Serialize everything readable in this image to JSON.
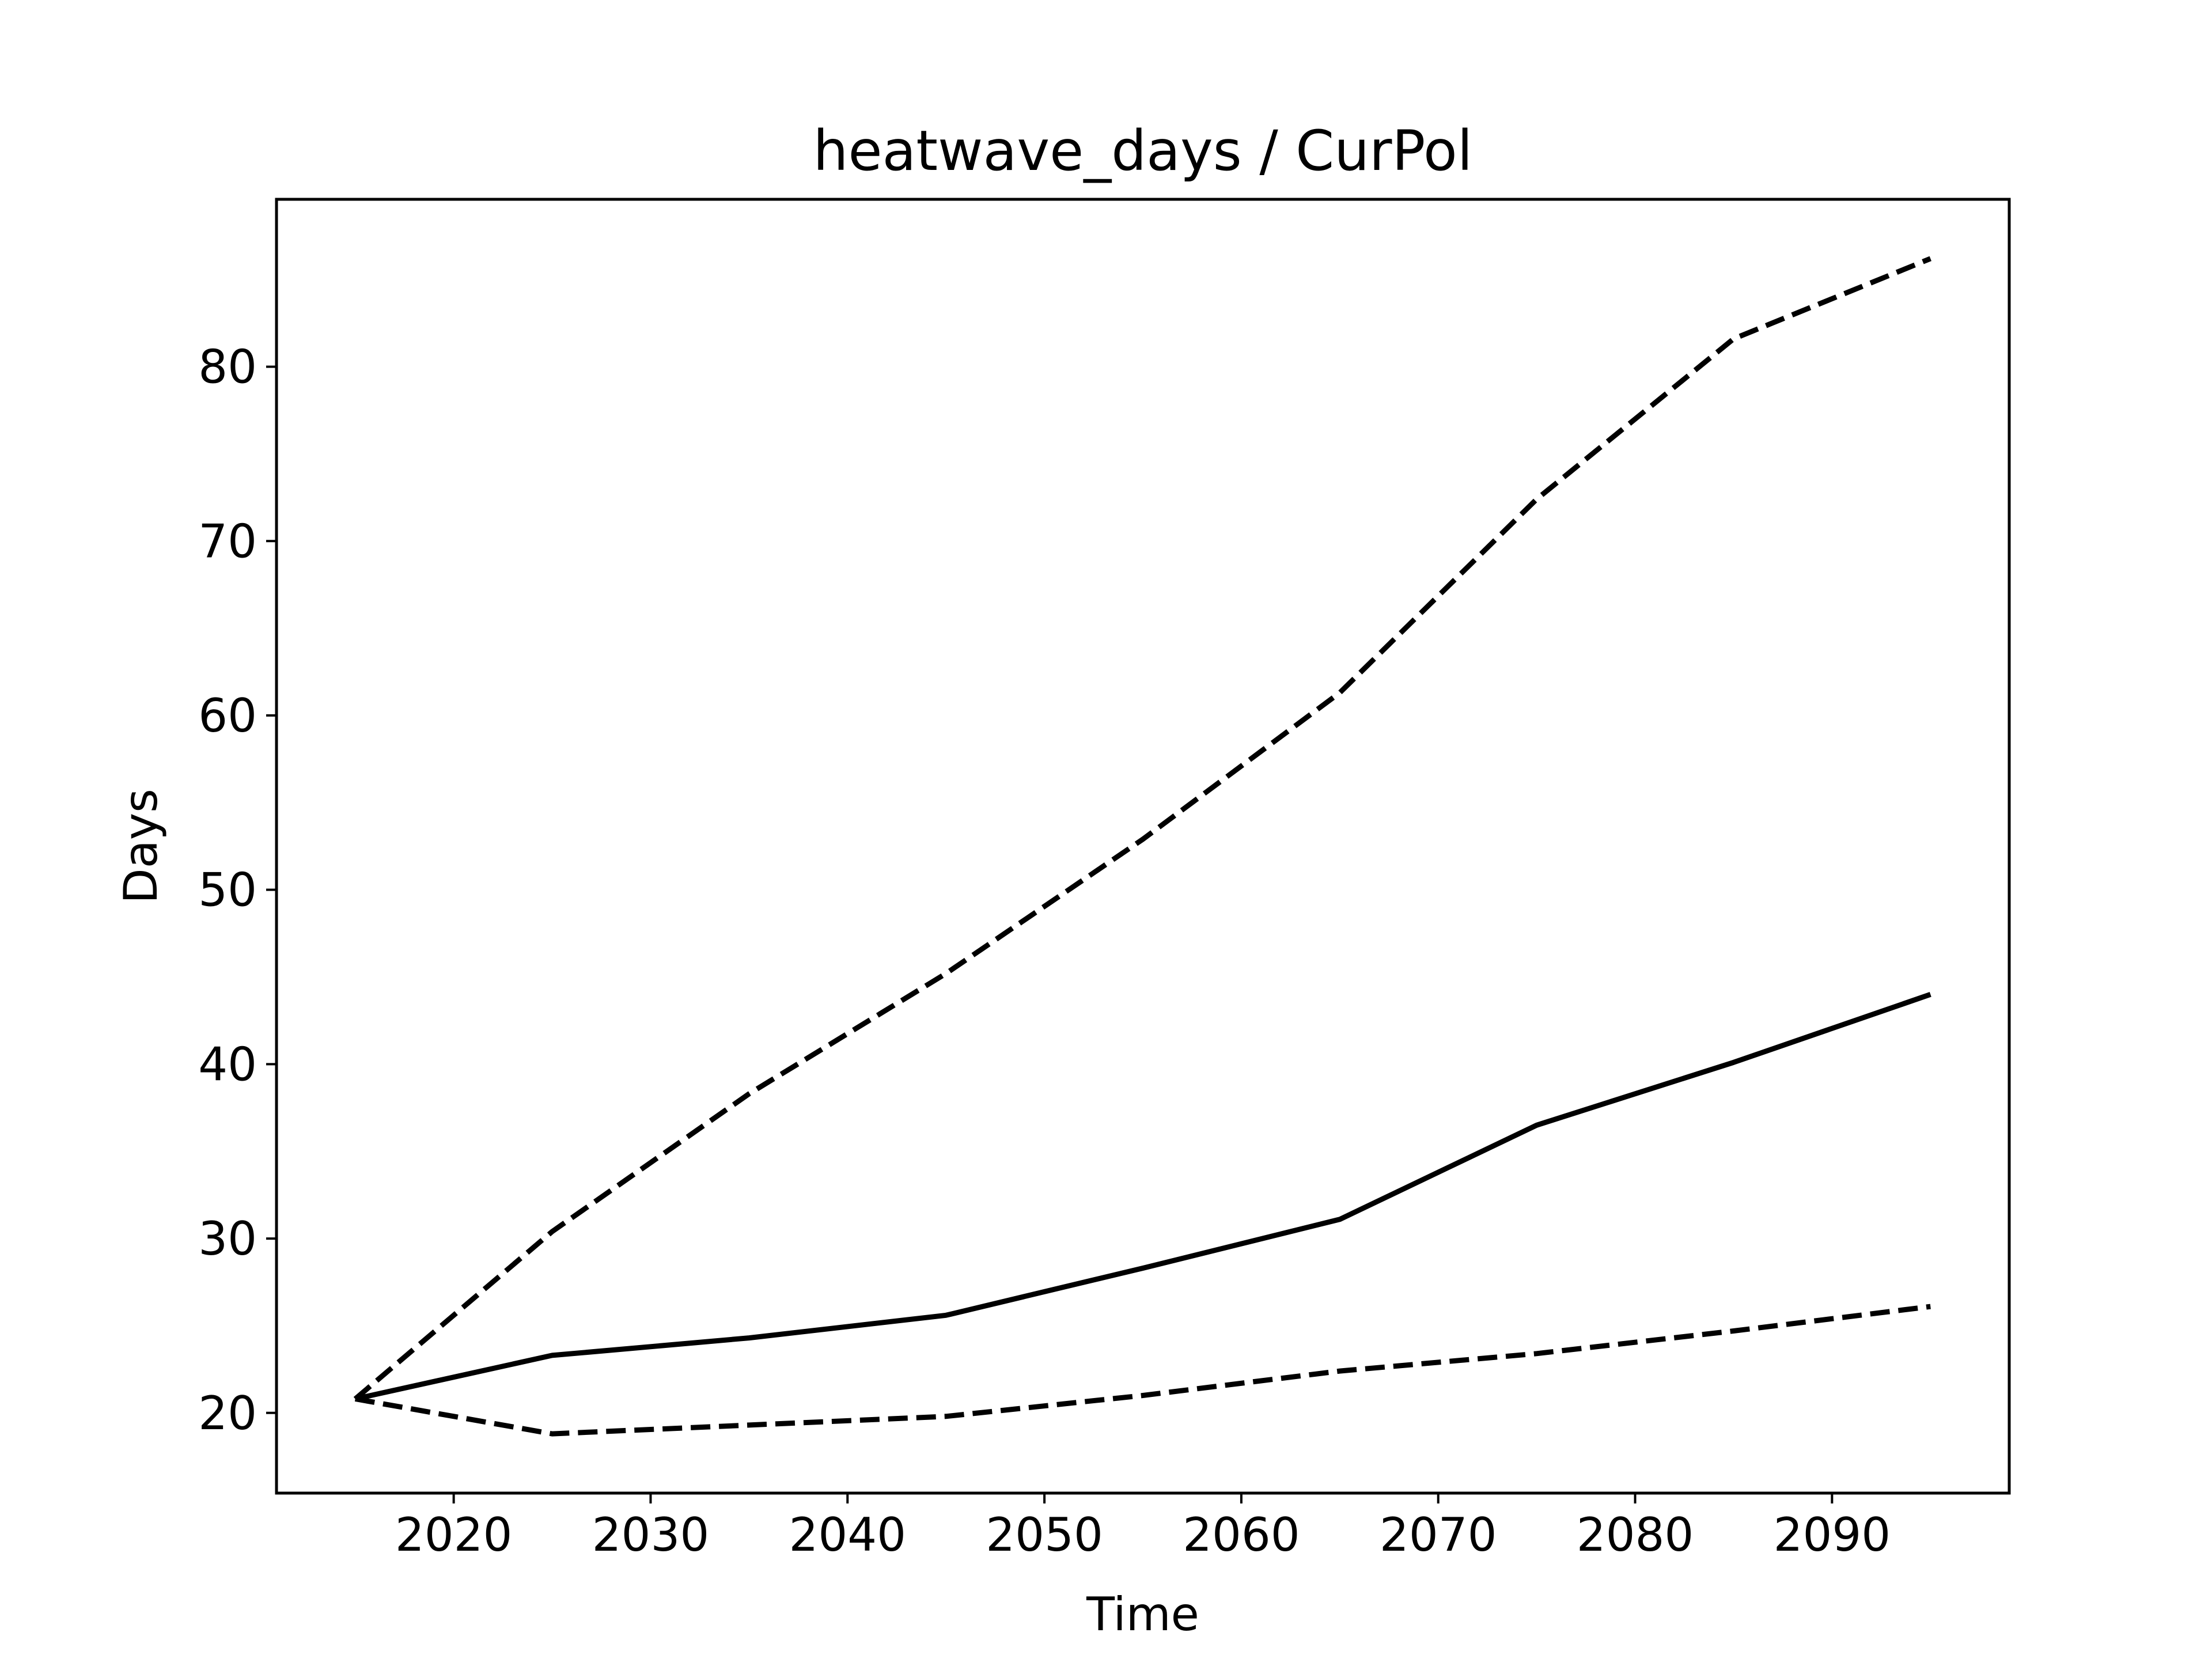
{
  "chart_data": {
    "type": "line",
    "title": "heatwave_days / CurPol",
    "xlabel": "Time",
    "ylabel": "Days",
    "xlim": [
      2011,
      2099
    ],
    "ylim": [
      15.4,
      89.6
    ],
    "x_ticks": [
      2020,
      2030,
      2040,
      2050,
      2060,
      2070,
      2080,
      2090
    ],
    "y_ticks": [
      20,
      30,
      40,
      50,
      60,
      70,
      80
    ],
    "grid": false,
    "legend": "none",
    "x": [
      2015,
      2025,
      2035,
      2045,
      2055,
      2065,
      2075,
      2085,
      2095
    ],
    "series": [
      {
        "style": "dashed",
        "color": "#000000",
        "values": [
          20.8,
          30.4,
          38.3,
          45.2,
          52.9,
          61.3,
          72.4,
          81.6,
          86.2
        ]
      },
      {
        "style": "solid",
        "color": "#000000",
        "values": [
          20.8,
          23.3,
          24.3,
          25.6,
          28.3,
          31.1,
          36.5,
          40.1,
          44.0
        ]
      },
      {
        "style": "dashed",
        "color": "#000000",
        "values": [
          20.8,
          18.8,
          19.3,
          19.8,
          21.0,
          22.4,
          23.4,
          24.7,
          26.1
        ]
      }
    ]
  }
}
